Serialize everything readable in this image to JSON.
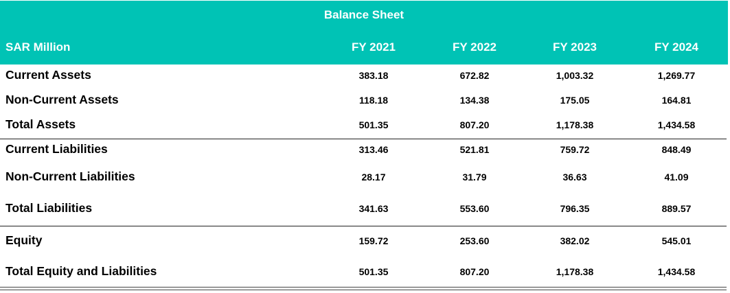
{
  "table": {
    "title": "Balance Sheet",
    "unit_label": "SAR Million",
    "columns": [
      "FY 2021",
      "FY 2022",
      "FY 2023",
      "FY 2024"
    ],
    "header_color": "#00c3b5",
    "rows": [
      {
        "label": "Current Assets",
        "values": [
          "383.18",
          "672.82",
          "1,003.32",
          "1,269.77"
        ]
      },
      {
        "label": "Non-Current Assets",
        "values": [
          "118.18",
          "134.38",
          "175.05",
          "164.81"
        ]
      },
      {
        "label": "Total Assets",
        "values": [
          "501.35",
          "807.20",
          "1,178.38",
          "1,434.58"
        ]
      },
      {
        "label": "Current Liabilities",
        "values": [
          "313.46",
          "521.81",
          "759.72",
          "848.49"
        ]
      },
      {
        "label": "Non-Current Liabilities",
        "values": [
          "28.17",
          "31.79",
          "36.63",
          "41.09"
        ]
      },
      {
        "label": "Total Liabilities",
        "values": [
          "341.63",
          "553.60",
          "796.35",
          "889.57"
        ]
      },
      {
        "label": "Equity",
        "values": [
          "159.72",
          "253.60",
          "382.02",
          "545.01"
        ]
      },
      {
        "label": "Total Equity and Liabilities",
        "values": [
          "501.35",
          "807.20",
          "1,178.38",
          "1,434.58"
        ]
      }
    ]
  }
}
